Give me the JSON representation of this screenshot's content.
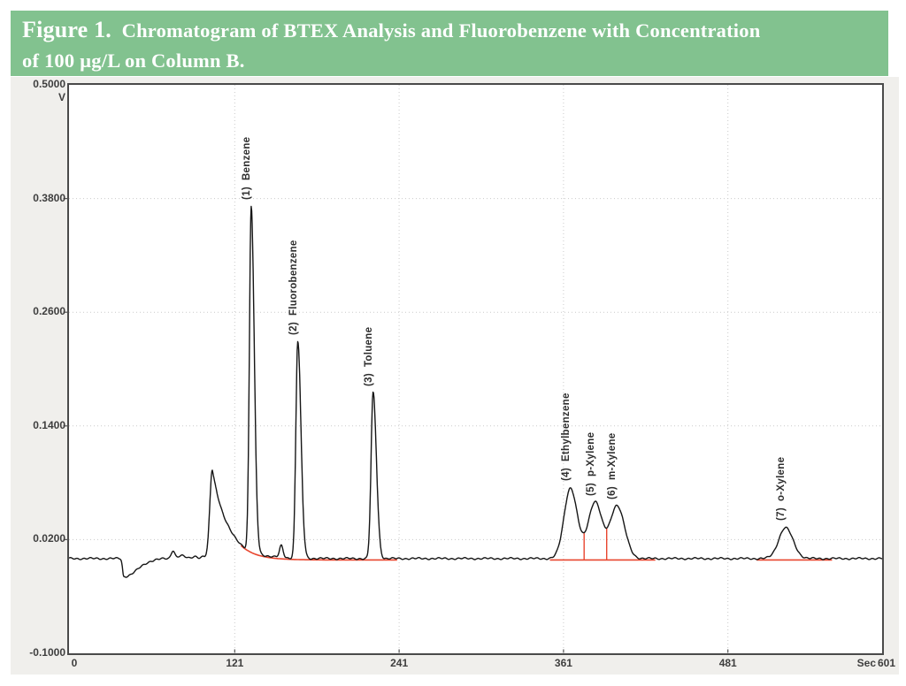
{
  "header": {
    "figure_label": "Figure 1.",
    "title_line1": "Chromatogram of BTEX Analysis and Fluorobenzene with Concentration",
    "title_line2": "of 100 µg/L on Column B.",
    "bg_color": "#82c28f",
    "text_color": "#ffffff"
  },
  "chart_data": {
    "type": "line",
    "title": "Chromatogram of BTEX Analysis and Fluorobenzene with Concentration of 100 µg/L on Column B",
    "x_axis": {
      "unit_label": "Sec",
      "ticks": [
        0,
        121,
        241,
        361,
        481
      ],
      "tick_labels": [
        "0",
        "121",
        "241",
        "361",
        "481"
      ],
      "end_label": "601",
      "range_sec": [
        0,
        601
      ]
    },
    "y_axis": {
      "unit_label": "V",
      "ticks": [
        0.5,
        0.38,
        0.26,
        0.14,
        0.02,
        -0.1
      ],
      "tick_labels": [
        "0.5000",
        "0.3800",
        "0.2600",
        "0.1400",
        "0.0200",
        "-0.1000"
      ],
      "range_v": [
        -0.1,
        0.5
      ]
    },
    "grid": true,
    "grid_color": "#cacaca",
    "trace_color": "#161616",
    "baseline_v": 0.0,
    "peaks": [
      {
        "number": 1,
        "name": "Benzene",
        "label": "(1)  Benzene",
        "rt_sec": 133,
        "apex_v": 0.372,
        "amp_v": 0.364,
        "sigma_left_sec": 1.3,
        "sigma_right_sec": 2.2
      },
      {
        "number": 2,
        "name": "Fluorobenzene",
        "label": "(2)  Fluorobenzene",
        "rt_sec": 167,
        "apex_v": 0.229,
        "amp_v": 0.229,
        "sigma_left_sec": 1.4,
        "sigma_right_sec": 2.3
      },
      {
        "number": 3,
        "name": "Toluene",
        "label": "(3)  Toluene",
        "rt_sec": 222,
        "apex_v": 0.175,
        "amp_v": 0.175,
        "sigma_left_sec": 1.5,
        "sigma_right_sec": 2.4
      },
      {
        "number": 4,
        "name": "Ethylbenzene",
        "label": "(4)  Ethylbenzene",
        "rt_sec": 366,
        "apex_v": 0.075,
        "amp_v": 0.0745,
        "sigma_left_sec": 4.6,
        "sigma_right_sec": 5.0
      },
      {
        "number": 5,
        "name": "p-Xylene",
        "label": "(5)  p-Xylene",
        "rt_sec": 384,
        "apex_v": 0.06,
        "amp_v": 0.06,
        "sigma_left_sec": 5.0,
        "sigma_right_sec": 5.0
      },
      {
        "number": 6,
        "name": "m-Xylene",
        "label": "(6)  m-Xylene",
        "rt_sec": 400,
        "apex_v": 0.056,
        "amp_v": 0.056,
        "sigma_left_sec": 5.0,
        "sigma_right_sec": 5.5
      },
      {
        "number": 7,
        "name": "o-Xylene",
        "label": "(7)  o-Xylene",
        "rt_sec": 523,
        "apex_v": 0.033,
        "amp_v": 0.0325,
        "sigma_left_sec": 5.0,
        "sigma_right_sec": 5.5
      }
    ],
    "unlabeled_features": [
      {
        "kind": "dip",
        "t_sec": 40,
        "v": -0.019,
        "sigma_left_sec": 0.9,
        "sigma_right_sec": 10
      },
      {
        "kind": "bump",
        "t_sec": 75.9,
        "v": 0.0087,
        "sigma_sec": 1.3
      },
      {
        "kind": "bump",
        "t_sec": 82,
        "v": 0.003,
        "sigma_sec": 2.5
      },
      {
        "kind": "bump",
        "t_sec": 92,
        "v": 0.0025,
        "sigma_sec": 2.0
      },
      {
        "kind": "bump",
        "t_sec": 98,
        "v": 0.002,
        "sigma_sec": 1.5
      },
      {
        "kind": "solvent_front",
        "t_sec": 104.6,
        "v": 0.094,
        "sigma_left_sec": 1.8,
        "tail_tau_sec": 11.5
      },
      {
        "kind": "bump",
        "t_sec": 155,
        "v": 0.0125,
        "sigma_sec": 1.3
      }
    ],
    "integration": {
      "color": "#e8462f",
      "offset_v": -0.0015,
      "segments": [
        {
          "t_start_sec": 125.5,
          "t_end_sec": 240,
          "follows": "tail"
        },
        {
          "t_start_sec": 351,
          "t_end_sec": 428,
          "follows": "flat"
        },
        {
          "t_start_sec": 502,
          "t_end_sec": 557,
          "follows": "flat"
        }
      ],
      "drop_lines": [
        {
          "t_sec": 376
        },
        {
          "t_sec": 392.5
        }
      ]
    }
  }
}
